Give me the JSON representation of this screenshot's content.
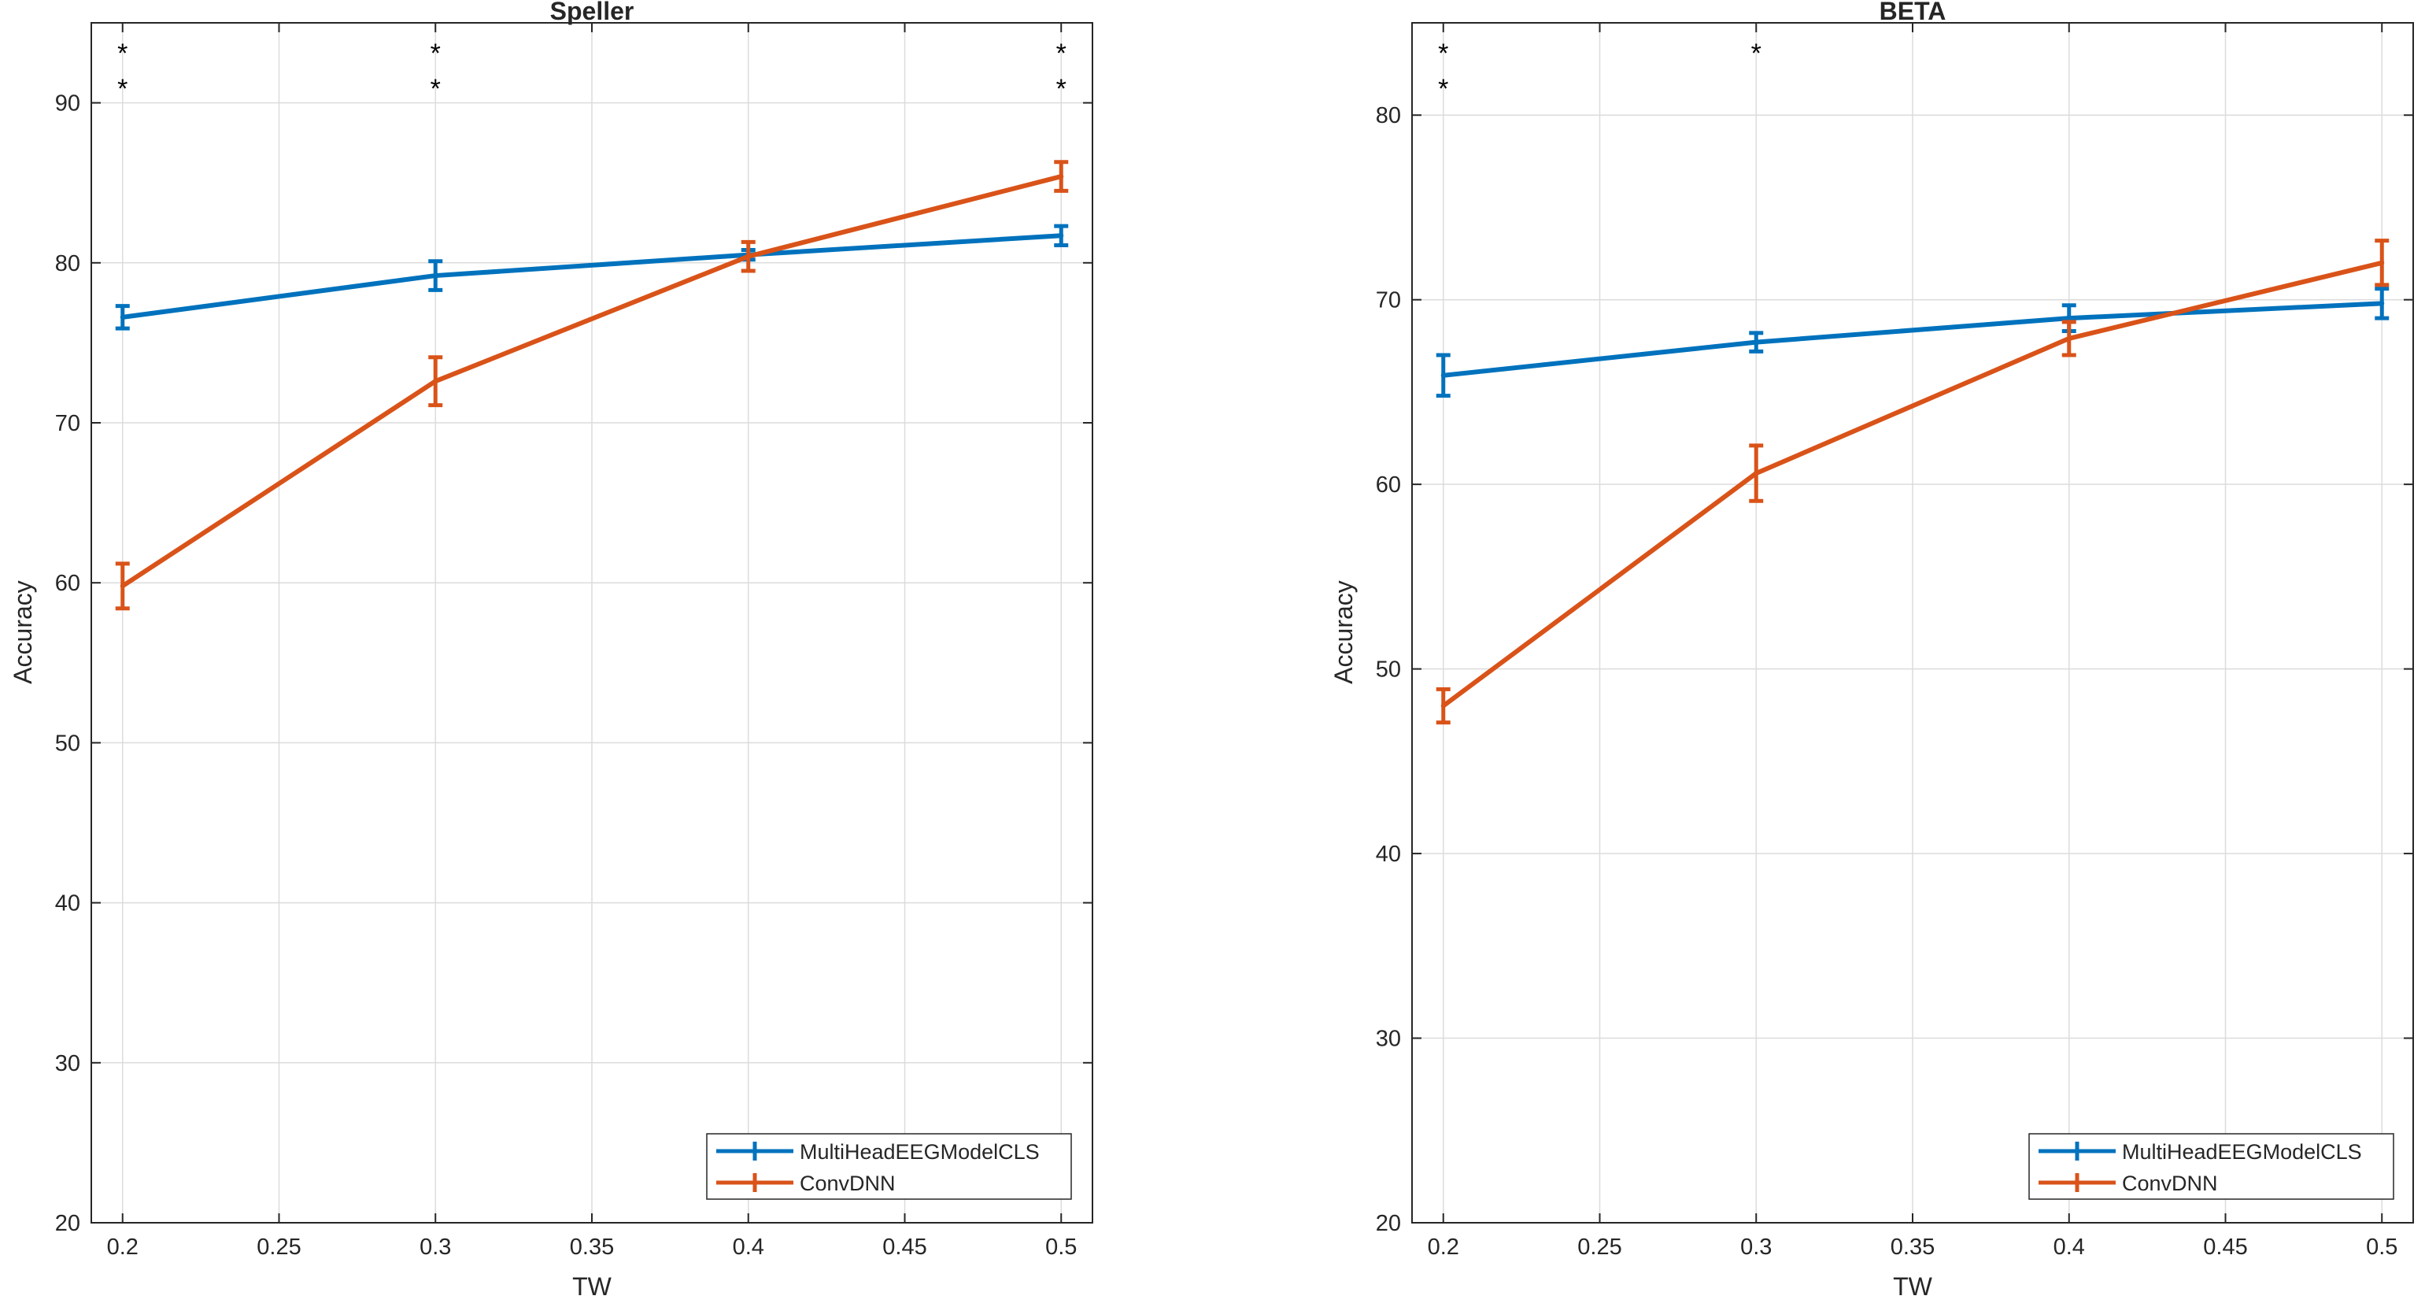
{
  "chart_data": [
    {
      "type": "line",
      "title": "Speller",
      "xlabel": "TW",
      "ylabel": "Accuracy",
      "x": [
        0.2,
        0.3,
        0.4,
        0.5
      ],
      "xlim": [
        0.19,
        0.51
      ],
      "ylim": [
        20,
        95
      ],
      "xticks": [
        0.2,
        0.25,
        0.3,
        0.35,
        0.4,
        0.45,
        0.5
      ],
      "xtick_labels": [
        "0.2",
        "0.25",
        "0.3",
        "0.35",
        "0.4",
        "0.45",
        "0.5"
      ],
      "yticks": [
        20,
        30,
        40,
        50,
        60,
        70,
        80,
        90
      ],
      "ytick_labels": [
        "20",
        "30",
        "40",
        "50",
        "60",
        "70",
        "80",
        "90"
      ],
      "grid": true,
      "legend_position": "bottom-right",
      "series": [
        {
          "name": "MultiHeadEEGModelCLS",
          "color": "#0072BD",
          "values": [
            76.6,
            79.2,
            80.5,
            81.7
          ],
          "errors": [
            0.7,
            0.9,
            0.3,
            0.6
          ]
        },
        {
          "name": "ConvDNN",
          "color": "#D95319",
          "values": [
            59.8,
            72.6,
            80.4,
            85.4
          ],
          "errors": [
            1.4,
            1.5,
            0.9,
            0.9
          ]
        }
      ],
      "significance": [
        {
          "x": 0.2,
          "marks": [
            "*",
            "*"
          ]
        },
        {
          "x": 0.3,
          "marks": [
            "*",
            "*"
          ]
        },
        {
          "x": 0.5,
          "marks": [
            "*",
            "*"
          ]
        }
      ]
    },
    {
      "type": "line",
      "title": "BETA",
      "xlabel": "TW",
      "ylabel": "Accuracy",
      "x": [
        0.2,
        0.3,
        0.4,
        0.5
      ],
      "xlim": [
        0.19,
        0.51
      ],
      "ylim": [
        20,
        85
      ],
      "xticks": [
        0.2,
        0.25,
        0.3,
        0.35,
        0.4,
        0.45,
        0.5
      ],
      "xtick_labels": [
        "0.2",
        "0.25",
        "0.3",
        "0.35",
        "0.4",
        "0.45",
        "0.5"
      ],
      "yticks": [
        20,
        30,
        40,
        50,
        60,
        70,
        80
      ],
      "ytick_labels": [
        "20",
        "30",
        "40",
        "50",
        "60",
        "70",
        "80"
      ],
      "grid": true,
      "legend_position": "bottom-right",
      "series": [
        {
          "name": "MultiHeadEEGModelCLS",
          "color": "#0072BD",
          "values": [
            65.9,
            67.7,
            69.0,
            69.8
          ],
          "errors": [
            1.1,
            0.5,
            0.7,
            0.8
          ]
        },
        {
          "name": "ConvDNN",
          "color": "#D95319",
          "values": [
            48.0,
            60.6,
            67.9,
            72.0
          ],
          "errors": [
            0.9,
            1.5,
            0.9,
            1.2
          ]
        }
      ],
      "significance": [
        {
          "x": 0.2,
          "marks": [
            "*",
            "*"
          ]
        },
        {
          "x": 0.3,
          "marks": [
            "*"
          ]
        }
      ]
    }
  ]
}
